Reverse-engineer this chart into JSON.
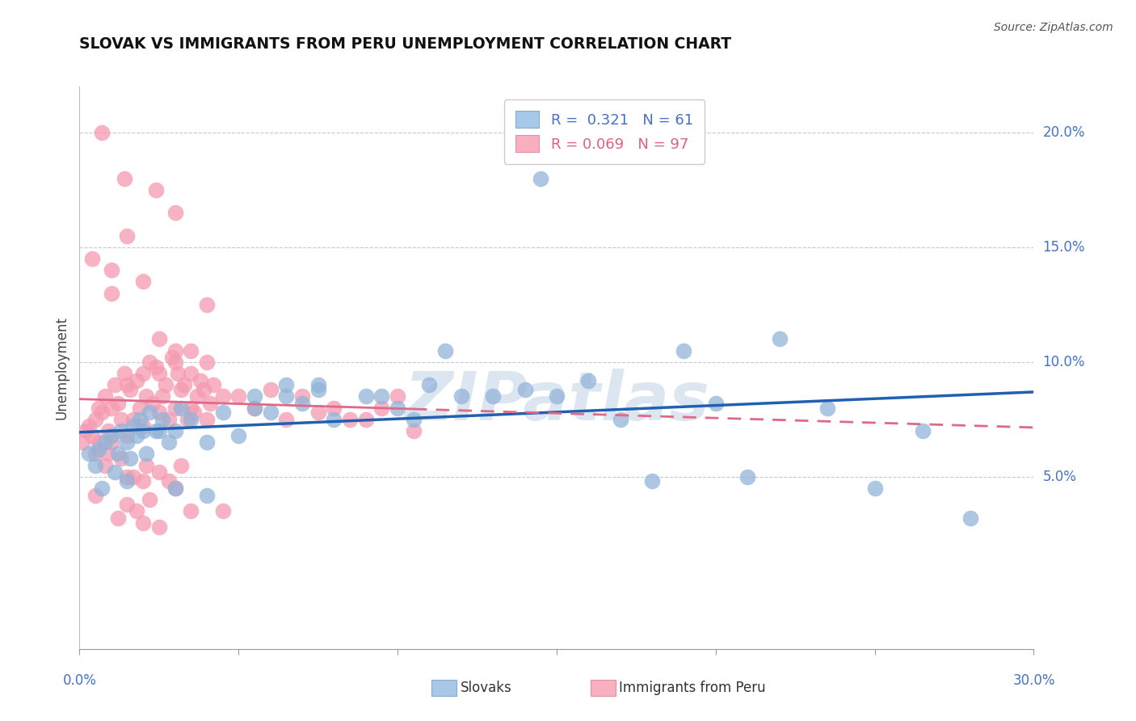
{
  "title": "SLOVAK VS IMMIGRANTS FROM PERU UNEMPLOYMENT CORRELATION CHART",
  "source": "Source: ZipAtlas.com",
  "ylabel": "Unemployment",
  "R1": 0.321,
  "N1": 61,
  "R2": 0.069,
  "N2": 97,
  "scatter1_color": "#92b4d8",
  "scatter2_color": "#f59ab0",
  "line1_color": "#2060b0",
  "line2_color": "#e06888",
  "legend1_fill": "#a8c8e8",
  "legend2_fill": "#f8b0c0",
  "xlim": [
    0.0,
    30.0
  ],
  "ylim": [
    -2.5,
    22.0
  ],
  "yticks": [
    5.0,
    10.0,
    15.0,
    20.0
  ],
  "ytick_labels": [
    "5.0%",
    "10.0%",
    "15.0%",
    "20.0%"
  ],
  "xtick_label_left": "0.0%",
  "xtick_label_right": "30.0%",
  "slovaks_x": [
    0.3,
    0.5,
    0.6,
    0.8,
    1.0,
    1.1,
    1.2,
    1.3,
    1.5,
    1.6,
    1.7,
    1.8,
    1.9,
    2.0,
    2.1,
    2.2,
    2.4,
    2.6,
    2.8,
    3.0,
    3.2,
    3.5,
    4.0,
    4.5,
    5.0,
    5.5,
    6.0,
    6.5,
    7.0,
    7.5,
    8.0,
    9.0,
    10.0,
    11.0,
    12.0,
    13.0,
    14.0,
    15.0,
    16.0,
    17.0,
    18.0,
    19.0,
    20.0,
    21.0,
    22.0,
    23.5,
    25.0,
    26.5,
    28.0,
    9.5,
    10.5,
    11.5,
    6.5,
    7.5,
    5.5,
    4.0,
    3.0,
    2.5,
    1.5,
    0.7,
    14.5
  ],
  "slovaks_y": [
    6.0,
    5.5,
    6.2,
    6.5,
    6.8,
    5.2,
    6.0,
    7.0,
    6.5,
    5.8,
    7.2,
    6.8,
    7.5,
    7.0,
    6.0,
    7.8,
    7.0,
    7.5,
    6.5,
    7.0,
    8.0,
    7.5,
    6.5,
    7.8,
    6.8,
    8.0,
    7.8,
    8.5,
    8.2,
    8.8,
    7.5,
    8.5,
    8.0,
    9.0,
    8.5,
    8.5,
    8.8,
    8.5,
    9.2,
    7.5,
    4.8,
    10.5,
    8.2,
    5.0,
    11.0,
    8.0,
    4.5,
    7.0,
    3.2,
    8.5,
    7.5,
    10.5,
    9.0,
    9.0,
    8.5,
    4.2,
    4.5,
    7.0,
    4.8,
    4.5,
    18.0
  ],
  "peru_x": [
    0.1,
    0.2,
    0.3,
    0.4,
    0.5,
    0.5,
    0.6,
    0.7,
    0.8,
    0.9,
    1.0,
    1.0,
    1.1,
    1.2,
    1.3,
    1.4,
    1.5,
    1.5,
    1.6,
    1.7,
    1.8,
    1.9,
    2.0,
    2.0,
    2.1,
    2.2,
    2.3,
    2.4,
    2.5,
    2.5,
    2.6,
    2.7,
    2.8,
    2.9,
    3.0,
    3.0,
    3.1,
    3.2,
    3.3,
    3.4,
    3.5,
    3.5,
    3.6,
    3.7,
    3.8,
    3.9,
    4.0,
    4.0,
    4.1,
    4.2,
    4.5,
    5.0,
    5.5,
    6.0,
    6.5,
    7.0,
    7.5,
    8.0,
    8.5,
    9.0,
    9.5,
    10.0,
    10.5,
    0.8,
    1.5,
    2.0,
    2.5,
    3.0,
    1.8,
    2.2,
    1.2,
    0.6,
    0.9,
    1.3,
    1.7,
    2.1,
    2.8,
    3.2,
    0.4,
    1.0,
    1.5,
    2.0,
    0.7,
    1.4,
    2.4,
    3.0,
    3.5,
    4.0,
    2.5,
    3.0,
    0.5,
    1.5,
    2.0,
    2.5,
    3.5,
    4.5,
    1.0
  ],
  "peru_y": [
    6.5,
    7.0,
    7.2,
    6.8,
    7.5,
    6.0,
    8.0,
    7.8,
    8.5,
    7.0,
    8.0,
    6.5,
    9.0,
    8.2,
    7.5,
    9.5,
    9.0,
    6.8,
    8.8,
    7.5,
    9.2,
    8.0,
    9.5,
    7.2,
    8.5,
    10.0,
    8.2,
    9.8,
    9.5,
    7.8,
    8.5,
    9.0,
    7.5,
    10.2,
    10.5,
    8.0,
    9.5,
    8.8,
    9.0,
    7.5,
    9.5,
    8.0,
    7.8,
    8.5,
    9.2,
    8.8,
    10.0,
    7.5,
    8.2,
    9.0,
    8.5,
    8.5,
    8.0,
    8.8,
    7.5,
    8.5,
    7.8,
    8.0,
    7.5,
    7.5,
    8.0,
    8.5,
    7.0,
    5.5,
    5.0,
    4.8,
    5.2,
    4.5,
    3.5,
    4.0,
    3.2,
    6.5,
    6.0,
    5.8,
    5.0,
    5.5,
    4.8,
    5.5,
    14.5,
    14.0,
    15.5,
    13.5,
    20.0,
    18.0,
    17.5,
    16.5,
    10.5,
    12.5,
    11.0,
    10.0,
    4.2,
    3.8,
    3.0,
    2.8,
    3.5,
    3.5,
    13.0
  ]
}
